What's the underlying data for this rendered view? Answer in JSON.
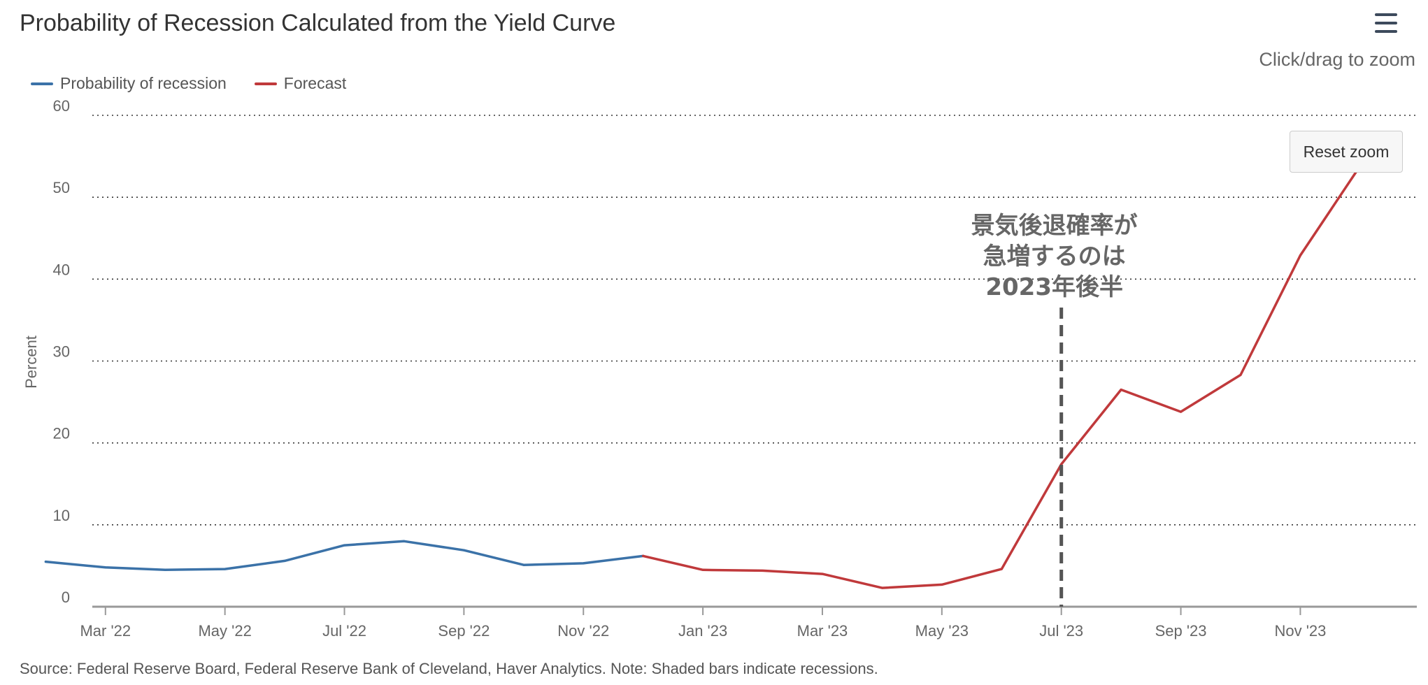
{
  "header": {
    "title": "Probability of Recession Calculated from the Yield Curve",
    "zoom_hint": "Click/drag to zoom",
    "reset_zoom_label": "Reset zoom",
    "menu_icon": "hamburger-menu-icon"
  },
  "footer": {
    "source": "Source: Federal Reserve Board, Federal Reserve Bank of Cleveland, Haver Analytics. Note: Shaded bars indicate recessions."
  },
  "colors": {
    "history": "#3b72a8",
    "forecast": "#c0393b",
    "grid": "#333333",
    "axis": "#999999",
    "annotation_line": "#555555"
  },
  "chart_data": {
    "type": "line",
    "title": "Probability of Recession Calculated from the Yield Curve",
    "ylabel": "Percent",
    "xlabel": "",
    "ylim": [
      0,
      60
    ],
    "yticks": [
      0,
      10,
      20,
      30,
      40,
      50,
      60
    ],
    "grid": "horizontal-dotted",
    "legend_position": "top-left",
    "x_tick_labels": [
      "Mar '22",
      "May '22",
      "Jul '22",
      "Sep '22",
      "Nov '22",
      "Jan '23",
      "Mar '23",
      "May '23",
      "Jul '23",
      "Sep '23",
      "Nov '23"
    ],
    "x_tick_dates": [
      "2022-03",
      "2022-05",
      "2022-07",
      "2022-09",
      "2022-11",
      "2023-01",
      "2023-03",
      "2023-05",
      "2023-07",
      "2023-09",
      "2023-11"
    ],
    "series": [
      {
        "name": "Probability of recession",
        "x": [
          "2022-02",
          "2022-03",
          "2022-04",
          "2022-05",
          "2022-06",
          "2022-07",
          "2022-08",
          "2022-09",
          "2022-10",
          "2022-11",
          "2022-12"
        ],
        "values": [
          5.5,
          4.8,
          4.5,
          4.6,
          5.6,
          7.5,
          8.0,
          6.9,
          5.1,
          5.3,
          6.2
        ]
      },
      {
        "name": "Forecast",
        "x": [
          "2022-12",
          "2023-01",
          "2023-02",
          "2023-03",
          "2023-04",
          "2023-05",
          "2023-06",
          "2023-07",
          "2023-08",
          "2023-09",
          "2023-10",
          "2023-11",
          "2023-12"
        ],
        "values": [
          6.2,
          4.5,
          4.4,
          4.0,
          2.3,
          2.7,
          4.6,
          17.4,
          26.5,
          23.8,
          28.3,
          42.9,
          53.8
        ]
      }
    ],
    "annotation": {
      "lines": [
        "景気後退確率が",
        "急増するのは",
        "2023年後半"
      ],
      "x": "2023-07",
      "line_style": "dashed-vertical"
    }
  }
}
